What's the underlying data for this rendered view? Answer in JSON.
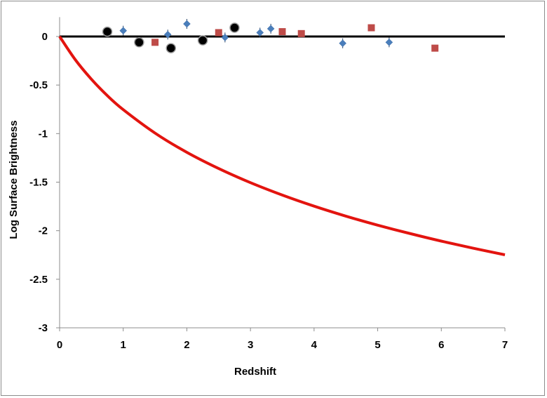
{
  "chart_data": {
    "type": "scatter",
    "title": "",
    "xlabel": "Redshift",
    "ylabel": "Log Surface Brightness",
    "xlim": [
      0,
      7
    ],
    "ylim": [
      -3,
      0.2
    ],
    "x_ticks": [
      "0",
      "1",
      "2",
      "3",
      "4",
      "5",
      "6",
      "7"
    ],
    "y_ticks": [
      "0",
      "-0.5",
      "-1",
      "-1.5",
      "-2",
      "-2.5",
      "-3"
    ],
    "grid": false,
    "legend": "none",
    "reference_line": {
      "y": 0,
      "color": "#000000"
    },
    "model_curve": {
      "type": "line",
      "color": "#e3140f",
      "x": [
        0,
        0.25,
        0.5,
        0.75,
        1,
        1.5,
        2,
        2.5,
        3,
        3.5,
        4,
        4.5,
        5,
        5.5,
        6,
        6.5,
        7
      ],
      "y": [
        0,
        -0.242,
        -0.44,
        -0.609,
        -0.753,
        -0.995,
        -1.193,
        -1.36,
        -1.505,
        -1.633,
        -1.747,
        -1.85,
        -1.943,
        -2.028,
        -2.107,
        -2.18,
        -2.248
      ]
    },
    "series": [
      {
        "marker": "diamond",
        "color": "#4a7ebb",
        "x": [
          1.0,
          1.7,
          2.0,
          2.6,
          3.15,
          3.32,
          4.45,
          5.18
        ],
        "y": [
          0.06,
          0.02,
          0.13,
          -0.01,
          0.04,
          0.08,
          -0.07,
          -0.06
        ]
      },
      {
        "marker": "square",
        "color": "#be4b48",
        "x": [
          1.5,
          2.5,
          3.5,
          3.8,
          4.9,
          5.9
        ],
        "y": [
          -0.06,
          0.04,
          0.05,
          0.03,
          0.09,
          -0.12
        ]
      },
      {
        "marker": "circle",
        "color": "#000000",
        "x": [
          0.75,
          1.25,
          1.75,
          2.25,
          2.75
        ],
        "y": [
          0.05,
          -0.06,
          -0.12,
          -0.04,
          0.09
        ]
      }
    ]
  }
}
